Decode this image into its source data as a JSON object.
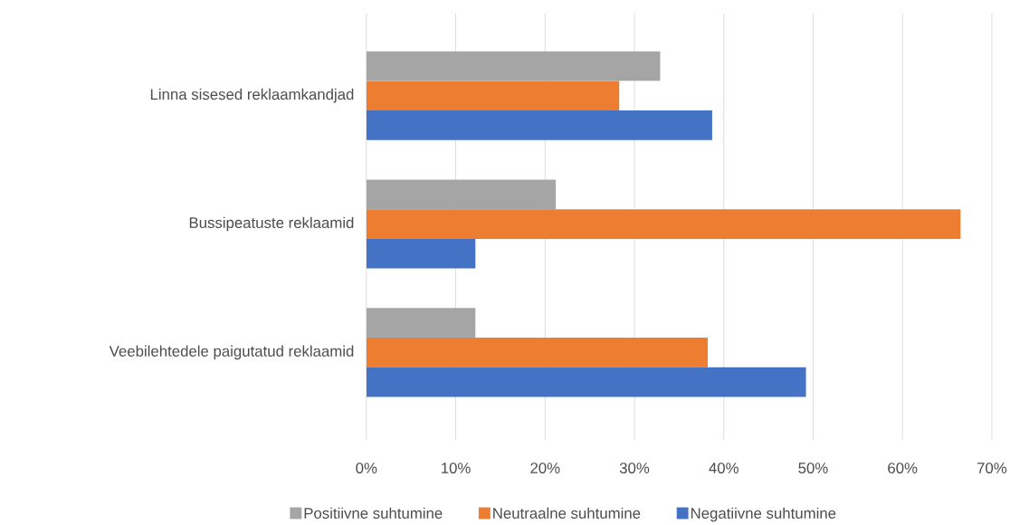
{
  "chart_data": {
    "type": "bar",
    "orientation": "horizontal",
    "categories": [
      "Linna sisesed reklaamkandjad",
      "Bussipeatuste reklaamid",
      "Veebilehtedele paigutatud  reklaamid"
    ],
    "series": [
      {
        "name": "Positiivne suhtumine",
        "color": "#a5a5a5",
        "values": [
          32.9,
          21.2,
          12.2
        ]
      },
      {
        "name": "Neutraalne suhtumine",
        "color": "#ed7d31",
        "values": [
          28.3,
          66.5,
          38.2
        ]
      },
      {
        "name": "Negatiivne suhtumine",
        "color": "#4472c4",
        "values": [
          38.7,
          12.2,
          49.2
        ]
      }
    ],
    "xlim": [
      0,
      70
    ],
    "xticks": [
      {
        "value": 0,
        "label": "0%"
      },
      {
        "value": 10,
        "label": "10%"
      },
      {
        "value": 20,
        "label": "20%"
      },
      {
        "value": 30,
        "label": "30%"
      },
      {
        "value": 40,
        "label": "40%"
      },
      {
        "value": 50,
        "label": "50%"
      },
      {
        "value": 60,
        "label": "60%"
      },
      {
        "value": 70,
        "label": "70%"
      }
    ],
    "grid": "x",
    "legend": "bottom"
  }
}
